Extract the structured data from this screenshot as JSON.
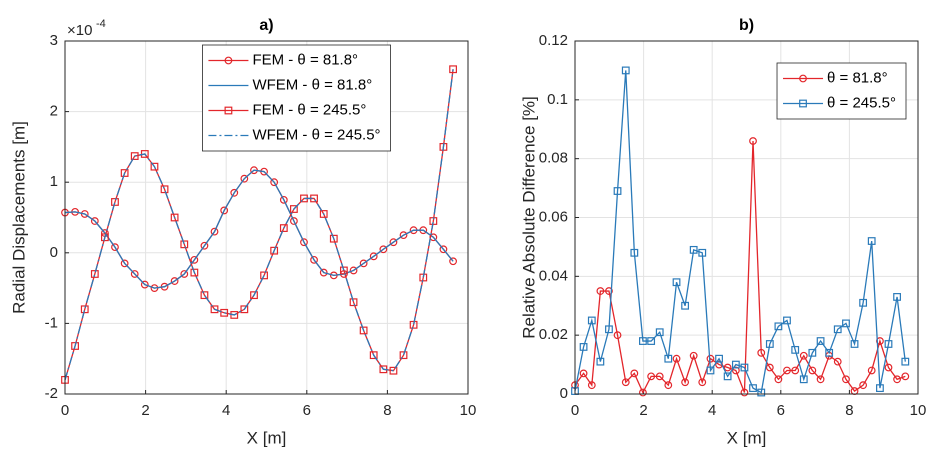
{
  "chart_data": [
    {
      "type": "line",
      "title": "a)",
      "xlabel": "X [m]",
      "ylabel": "Radial Displacements [m]",
      "y_exponent_base": "×10",
      "y_exponent_power": "-4",
      "xlim": [
        0,
        10
      ],
      "xticks": [
        0,
        2,
        4,
        6,
        8,
        10
      ],
      "ylim": [
        -2,
        3
      ],
      "yticks": [
        -2,
        -1,
        0,
        1,
        2,
        3
      ],
      "grid": true,
      "legend": "north",
      "x": [
        0,
        0.25,
        0.49,
        0.74,
        0.99,
        1.24,
        1.48,
        1.73,
        1.98,
        2.22,
        2.47,
        2.72,
        2.96,
        3.21,
        3.46,
        3.71,
        3.95,
        4.2,
        4.45,
        4.69,
        4.94,
        5.19,
        5.43,
        5.68,
        5.93,
        6.18,
        6.42,
        6.67,
        6.92,
        7.16,
        7.41,
        7.66,
        7.9,
        8.15,
        8.4,
        8.65,
        8.89,
        9.14,
        9.39,
        9.63
      ],
      "series": [
        {
          "name": "FEM - θ = 81.8°",
          "color": "#e3262b",
          "marker": "circle",
          "dash": "solid",
          "values": [
            0.57,
            0.58,
            0.55,
            0.45,
            0.28,
            0.08,
            -0.15,
            -0.3,
            -0.45,
            -0.5,
            -0.48,
            -0.4,
            -0.3,
            -0.1,
            0.1,
            0.3,
            0.6,
            0.85,
            1.05,
            1.17,
            1.15,
            1.0,
            0.75,
            0.45,
            0.15,
            -0.1,
            -0.28,
            -0.32,
            -0.3,
            -0.25,
            -0.15,
            -0.05,
            0.05,
            0.15,
            0.25,
            0.32,
            0.32,
            0.22,
            0.05,
            -0.12
          ]
        },
        {
          "name": "WFEM - θ = 81.8°",
          "color": "#2a7ab9",
          "marker": "none",
          "dash": "solid",
          "values": [
            0.57,
            0.58,
            0.55,
            0.45,
            0.28,
            0.08,
            -0.15,
            -0.3,
            -0.45,
            -0.5,
            -0.48,
            -0.4,
            -0.3,
            -0.1,
            0.1,
            0.3,
            0.6,
            0.85,
            1.05,
            1.17,
            1.15,
            1.0,
            0.75,
            0.45,
            0.15,
            -0.1,
            -0.28,
            -0.32,
            -0.3,
            -0.25,
            -0.15,
            -0.05,
            0.05,
            0.15,
            0.25,
            0.32,
            0.32,
            0.22,
            0.05,
            -0.12
          ]
        },
        {
          "name": "FEM - θ = 245.5°",
          "color": "#e3262b",
          "marker": "square",
          "dash": "solid",
          "values": [
            -1.8,
            -1.32,
            -0.8,
            -0.3,
            0.22,
            0.72,
            1.13,
            1.37,
            1.4,
            1.22,
            0.9,
            0.5,
            0.12,
            -0.28,
            -0.6,
            -0.8,
            -0.85,
            -0.88,
            -0.8,
            -0.6,
            -0.32,
            0.03,
            0.35,
            0.62,
            0.77,
            0.77,
            0.55,
            0.2,
            -0.25,
            -0.7,
            -1.1,
            -1.45,
            -1.65,
            -1.67,
            -1.45,
            -1.02,
            -0.35,
            0.45,
            1.5,
            2.6
          ]
        },
        {
          "name": "WFEM - θ = 245.5°",
          "color": "#2a7ab9",
          "marker": "none",
          "dash": "dashdot",
          "values": [
            -1.8,
            -1.32,
            -0.8,
            -0.3,
            0.22,
            0.72,
            1.13,
            1.37,
            1.4,
            1.22,
            0.9,
            0.5,
            0.12,
            -0.28,
            -0.6,
            -0.8,
            -0.85,
            -0.88,
            -0.8,
            -0.6,
            -0.32,
            0.03,
            0.35,
            0.62,
            0.77,
            0.77,
            0.55,
            0.2,
            -0.25,
            -0.7,
            -1.1,
            -1.45,
            -1.65,
            -1.67,
            -1.45,
            -1.02,
            -0.35,
            0.45,
            1.5,
            2.6
          ]
        }
      ]
    },
    {
      "type": "line",
      "title": "b)",
      "xlabel": "X [m]",
      "ylabel": "Relative Absolute Difference [%]",
      "xlim": [
        0,
        10
      ],
      "xticks": [
        0,
        2,
        4,
        6,
        8,
        10
      ],
      "ylim": [
        0,
        0.12
      ],
      "yticks": [
        0,
        0.02,
        0.04,
        0.06,
        0.08,
        0.1,
        0.12
      ],
      "grid": true,
      "legend": "northeast",
      "x": [
        0,
        0.25,
        0.49,
        0.74,
        0.99,
        1.24,
        1.48,
        1.73,
        1.98,
        2.22,
        2.47,
        2.72,
        2.96,
        3.21,
        3.46,
        3.71,
        3.95,
        4.2,
        4.45,
        4.69,
        4.94,
        5.19,
        5.43,
        5.68,
        5.93,
        6.18,
        6.42,
        6.67,
        6.92,
        7.16,
        7.41,
        7.66,
        7.9,
        8.15,
        8.4,
        8.65,
        8.89,
        9.14,
        9.39,
        9.63
      ],
      "series": [
        {
          "name": "θ = 81.8°",
          "color": "#e3262b",
          "marker": "circle",
          "dash": "solid",
          "values": [
            0.003,
            0.007,
            0.003,
            0.035,
            0.035,
            0.02,
            0.004,
            0.007,
            0.0005,
            0.006,
            0.006,
            0.003,
            0.012,
            0.004,
            0.013,
            0.004,
            0.012,
            0.01,
            0.009,
            0.008,
            0.0005,
            0.086,
            0.014,
            0.009,
            0.005,
            0.008,
            0.008,
            0.013,
            0.008,
            0.005,
            0.013,
            0.011,
            0.005,
            0.001,
            0.003,
            0.008,
            0.018,
            0.009,
            0.005,
            0.006
          ]
        },
        {
          "name": "θ = 245.5°",
          "color": "#2a7ab9",
          "marker": "square",
          "dash": "solid",
          "values": [
            0.001,
            0.016,
            0.025,
            0.011,
            0.022,
            0.069,
            0.11,
            0.048,
            0.018,
            0.018,
            0.021,
            0.012,
            0.038,
            0.03,
            0.049,
            0.048,
            0.008,
            0.012,
            0.006,
            0.01,
            0.009,
            0.002,
            0.0005,
            0.017,
            0.023,
            0.025,
            0.015,
            0.005,
            0.014,
            0.018,
            0.014,
            0.022,
            0.024,
            0.017,
            0.031,
            0.052,
            0.002,
            0.017,
            0.033,
            0.011
          ]
        }
      ]
    }
  ]
}
